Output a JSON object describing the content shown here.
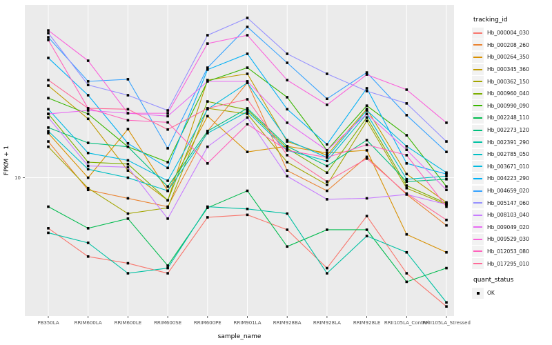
{
  "chart_data": {
    "type": "line",
    "title": "",
    "xlabel": "sample_name",
    "ylabel": "FPKM + 1",
    "y_scale": "log10",
    "ylim_log10": [
      0.2,
      2.0
    ],
    "y_ticks": [
      {
        "label": "10",
        "value": 10
      }
    ],
    "grid": "on",
    "legend_position": "right",
    "legend_title_series": "tracking_id",
    "legend_title_points": "quant_status",
    "quant_status_label": "OK",
    "categories": [
      "PB350LA",
      "RRIM600LA",
      "RRIM600LE",
      "RRIM600SE",
      "RRIM600PE",
      "RRIM901LA",
      "RRIM928BA",
      "RRIM928LA",
      "RRIM928LE",
      "RRII105LA_Control",
      "RRII105LA_Stressed"
    ],
    "series": [
      {
        "name": "Hb_000004_030",
        "color": "#F8766D",
        "values": [
          5.1,
          3.5,
          3.2,
          2.8,
          5.9,
          6.1,
          5.0,
          3.0,
          6.0,
          2.8,
          1.8
        ]
      },
      {
        "name": "Hb_000208_260",
        "color": "#EA8331",
        "values": [
          16.2,
          8.5,
          7.6,
          6.8,
          18.6,
          35.4,
          11.0,
          8.4,
          13.2,
          8.0,
          5.3
        ]
      },
      {
        "name": "Hb_000264_350",
        "color": "#D89000",
        "values": [
          18.1,
          10.0,
          19.1,
          8.4,
          22.7,
          14.1,
          15.2,
          13.9,
          14.4,
          4.7,
          3.7
        ]
      },
      {
        "name": "Hb_000345_360",
        "color": "#C09B00",
        "values": [
          34.1,
          21.9,
          11.0,
          7.4,
          36.7,
          39.9,
          16.2,
          13.5,
          25.0,
          10.5,
          7.2
        ]
      },
      {
        "name": "Hb_000362_150",
        "color": "#A3A500",
        "values": [
          15.1,
          8.7,
          6.2,
          6.7,
          25.2,
          23.4,
          12.3,
          9.1,
          21.3,
          8.7,
          7.0
        ]
      },
      {
        "name": "Hb_000960_040",
        "color": "#7CAE00",
        "values": [
          23.4,
          12.3,
          12.0,
          7.4,
          27.6,
          24.7,
          14.8,
          10.7,
          22.3,
          9.0,
          7.1
        ]
      },
      {
        "name": "Hb_000990_090",
        "color": "#39B600",
        "values": [
          28.9,
          23.4,
          15.1,
          12.3,
          36.1,
          43.3,
          29.2,
          14.4,
          26.1,
          17.6,
          8.9
        ]
      },
      {
        "name": "Hb_002248_110",
        "color": "#00BB4E",
        "values": [
          6.8,
          5.1,
          5.8,
          3.1,
          6.7,
          8.4,
          4.0,
          5.0,
          5.0,
          2.5,
          3.0
        ]
      },
      {
        "name": "Hb_002273_120",
        "color": "#00BF7D",
        "values": [
          19.5,
          15.9,
          15.1,
          8.9,
          18.6,
          25.2,
          15.2,
          11.7,
          16.5,
          9.5,
          9.8
        ]
      },
      {
        "name": "Hb_002391_290",
        "color": "#00C1A3",
        "values": [
          4.8,
          4.2,
          2.8,
          3.0,
          6.8,
          6.6,
          6.2,
          2.8,
          4.6,
          3.7,
          1.9
        ]
      },
      {
        "name": "Hb_002785_050",
        "color": "#00BFC4",
        "values": [
          18.6,
          11.2,
          10.0,
          8.4,
          18.1,
          24.1,
          14.4,
          12.5,
          23.4,
          9.8,
          10.2
        ]
      },
      {
        "name": "Hb_003671_010",
        "color": "#00BAE0",
        "values": [
          24.9,
          13.9,
          12.6,
          9.6,
          24.9,
          35.4,
          16.5,
          13.1,
          24.5,
          15.2,
          10.7
        ]
      },
      {
        "name": "Hb_004223_290",
        "color": "#00B0F6",
        "values": [
          49.3,
          30.0,
          15.8,
          11.4,
          42.2,
          52.1,
          24.9,
          15.6,
          32.9,
          12.1,
          10.5
        ]
      },
      {
        "name": "Hb_004659_020",
        "color": "#35A2FF",
        "values": [
          64.9,
          36.1,
          37.1,
          14.8,
          43.3,
          74.5,
          46.2,
          28.6,
          40.6,
          23.0,
          14.1
        ]
      },
      {
        "name": "Hb_005147_060",
        "color": "#9590FF",
        "values": [
          68.6,
          34.4,
          30.0,
          24.5,
          66.7,
          84.0,
          52.1,
          39.9,
          31.7,
          26.9,
          16.2
        ]
      },
      {
        "name": "Hb_008103_040",
        "color": "#C77CFF",
        "values": [
          22.3,
          11.7,
          11.5,
          5.8,
          15.1,
          22.3,
          10.2,
          7.5,
          7.6,
          8.0,
          7.0
        ]
      },
      {
        "name": "Hb_009049_020",
        "color": "#E76BF3",
        "values": [
          23.4,
          24.5,
          23.6,
          22.7,
          36.1,
          36.1,
          20.8,
          14.4,
          23.4,
          14.5,
          8.5
        ]
      },
      {
        "name": "Hb_009529_030",
        "color": "#FA62DB",
        "values": [
          71.1,
          47.5,
          23.6,
          23.6,
          59.7,
          66.7,
          36.7,
          26.4,
          39.5,
          32.3,
          20.8
        ]
      },
      {
        "name": "Hb_012053_080",
        "color": "#FF62BC",
        "values": [
          62.6,
          25.2,
          21.5,
          20.9,
          12.1,
          20.4,
          14.4,
          13.1,
          15.5,
          13.5,
          6.8
        ]
      },
      {
        "name": "Hb_017295_010",
        "color": "#FF6A98",
        "values": [
          36.7,
          25.2,
          24.9,
          19.0,
          25.2,
          28.4,
          13.5,
          9.5,
          12.9,
          8.1,
          5.7
        ]
      }
    ]
  },
  "colors": {
    "panel_bg": "#EBEBEB",
    "grid": "#FFFFFF",
    "axis_text": "#4D4D4D",
    "title_text": "#000000",
    "point": "#000000",
    "tick": "#333333",
    "legend_key_bg": "#F2F2F2"
  }
}
